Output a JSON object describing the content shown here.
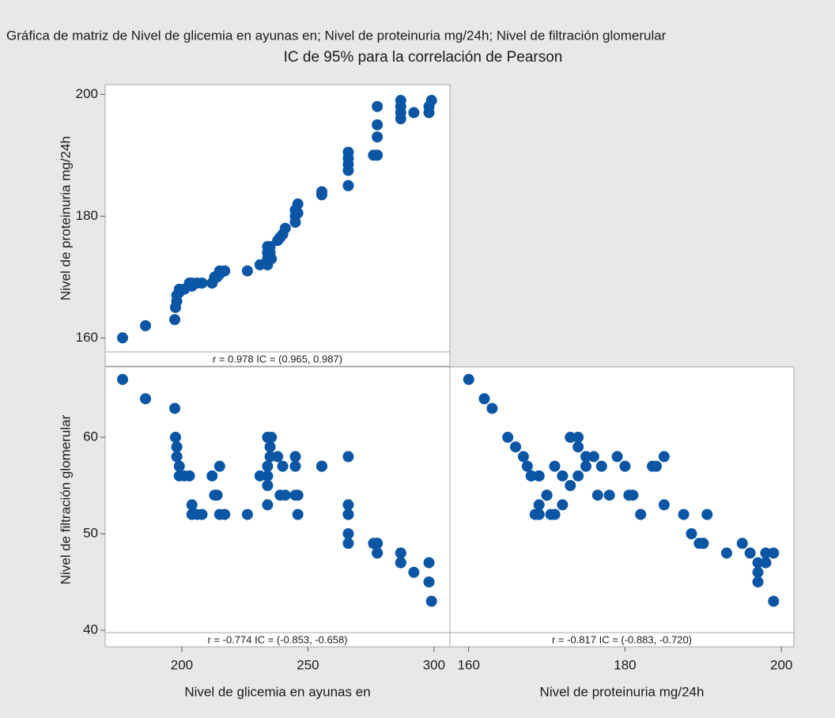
{
  "title": "Gráfica de matriz de Nivel de glicemia en ayunas en; Nivel de proteinuria mg/24h; Nivel de filtración glomerular",
  "subtitle": "IC de 95% para la correlación de Pearson",
  "chart_data": [
    {
      "type": "scatter",
      "color": "#0a56a5",
      "ylabel": "Nivel de proteinuria mg/24h",
      "annotation": "r = 0.978  IC = (0.965, 0.987)",
      "xlim": [
        169.6,
        306.3
      ],
      "ylim": [
        157.7,
        201.6
      ],
      "yticks": [
        160,
        180,
        200
      ],
      "x": [
        176.5,
        185.6,
        197.2,
        197.5,
        198,
        198,
        199,
        199,
        201,
        203,
        204,
        204,
        206,
        208,
        212,
        213,
        214,
        215,
        215,
        217,
        226,
        231,
        234,
        234,
        234,
        234,
        235,
        235,
        234,
        235.5,
        238,
        239,
        240,
        241,
        245,
        245,
        245,
        246,
        246,
        255.5,
        255.5,
        266,
        266,
        266,
        266,
        266,
        266,
        276,
        277.5,
        277.5,
        277.5,
        277.5,
        286.8,
        286.8,
        286.8,
        286.8,
        292,
        298,
        298,
        299
      ],
      "y": [
        160,
        162,
        163,
        165,
        166,
        167,
        167.5,
        168,
        168,
        169,
        169,
        168.5,
        169,
        169,
        169,
        170,
        170,
        171,
        170.5,
        171,
        171,
        172,
        172,
        173,
        174,
        175,
        175,
        174,
        174,
        173,
        176,
        176.5,
        177,
        178,
        179,
        180,
        181,
        182,
        180.5,
        183.5,
        184,
        185,
        185,
        187.5,
        188.5,
        189.5,
        190.5,
        190,
        190,
        193,
        195,
        198,
        196,
        197,
        198,
        199,
        197,
        197,
        198,
        199
      ]
    },
    {
      "type": "scatter",
      "color": "#0a56a5",
      "xlabel": "Nivel de glicemia en ayunas en",
      "ylabel": "Nivel de filtración glomerular",
      "annotation": "r = -0.774  IC = (-0.853, -0.658)",
      "xlim": [
        169.6,
        306.3
      ],
      "ylim": [
        39.75,
        67.3
      ],
      "xticks": [
        200,
        250,
        300
      ],
      "yticks": [
        40,
        50,
        60
      ],
      "x": [
        176.5,
        185.6,
        197.2,
        197.5,
        198,
        198,
        199,
        199,
        201,
        203,
        204,
        204,
        206,
        208,
        212,
        213,
        214,
        215,
        215,
        217,
        226,
        231,
        234,
        234,
        234,
        234,
        235,
        235,
        234,
        235.5,
        238,
        239,
        240,
        241,
        245,
        245,
        245,
        246,
        246,
        255.5,
        255.5,
        266,
        266,
        266,
        266,
        266,
        266,
        276,
        277.5,
        277.5,
        277.5,
        277.5,
        286.8,
        286.8,
        286.8,
        286.8,
        292,
        298,
        298,
        299
      ],
      "y": [
        66,
        64,
        63,
        60,
        59,
        58,
        57,
        56,
        56,
        56,
        53,
        52,
        52,
        52,
        56,
        54,
        54,
        57,
        52,
        52,
        52,
        56,
        53,
        55,
        56,
        57,
        58,
        59,
        60,
        60,
        58,
        54,
        57,
        54,
        58,
        57,
        54,
        52,
        54,
        57,
        57,
        58,
        53,
        52,
        50,
        49,
        52,
        49,
        49,
        48,
        49,
        48,
        48,
        47,
        47,
        48,
        46,
        45,
        47,
        43
      ]
    },
    {
      "type": "scatter",
      "color": "#0a56a5",
      "xlabel": "Nivel de proteinuria mg/24h",
      "annotation": "r = -0.817  IC = (-0.883, -0.720)",
      "xlim": [
        157.6,
        201.6
      ],
      "ylim": [
        39.75,
        67.3
      ],
      "xticks": [
        160,
        180,
        200
      ],
      "x": [
        160,
        162,
        163,
        165,
        166,
        167,
        167.5,
        168,
        168,
        169,
        169,
        168.5,
        169,
        169,
        169,
        170,
        170,
        171,
        170.5,
        171,
        171,
        172,
        172,
        173,
        174,
        175,
        175,
        174,
        174,
        173,
        176,
        176.5,
        177,
        178,
        179,
        180,
        181,
        182,
        180.5,
        183.5,
        184,
        185,
        185,
        187.5,
        188.5,
        189.5,
        190.5,
        190,
        190,
        193,
        195,
        198,
        196,
        197,
        198,
        199,
        197,
        197,
        198,
        199
      ],
      "y": [
        66,
        64,
        63,
        60,
        59,
        58,
        57,
        56,
        56,
        56,
        53,
        52,
        52,
        52,
        56,
        54,
        54,
        57,
        52,
        52,
        52,
        56,
        53,
        55,
        56,
        57,
        58,
        59,
        60,
        60,
        58,
        54,
        57,
        54,
        58,
        57,
        54,
        52,
        54,
        57,
        57,
        58,
        53,
        52,
        50,
        49,
        52,
        49,
        49,
        48,
        49,
        48,
        48,
        47,
        47,
        48,
        46,
        45,
        47,
        43
      ]
    }
  ]
}
